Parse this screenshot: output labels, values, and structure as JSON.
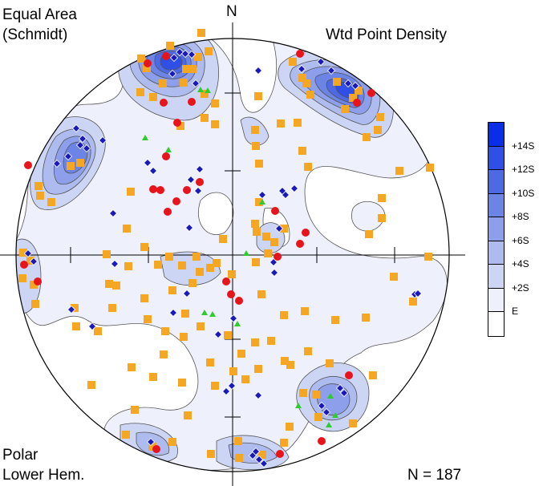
{
  "labels": {
    "projection": "Equal Area",
    "projection_sub": "(Schmidt)",
    "north": "N",
    "contour_method": "Wtd Point Density",
    "plot_type": "Polar",
    "hemisphere": "Lower Hem.",
    "count": "N = 187"
  },
  "legend": {
    "levels": [
      "+14S",
      "+12S",
      "+10S",
      "+8S",
      "+6S",
      "+4S",
      "+2S",
      "E"
    ],
    "colors": [
      "#0a2de8",
      "#2f4fe6",
      "#4d69e4",
      "#6b84e6",
      "#8d9fea",
      "#aebbef",
      "#cdd5f5",
      "#eef0fb",
      "#ffffff"
    ]
  },
  "colors": {
    "circle_marker": "#e8141c",
    "diamond_marker": "#1a1ab8",
    "square_marker": "#f5a623",
    "triangle_marker": "#2ecc2e"
  }
}
